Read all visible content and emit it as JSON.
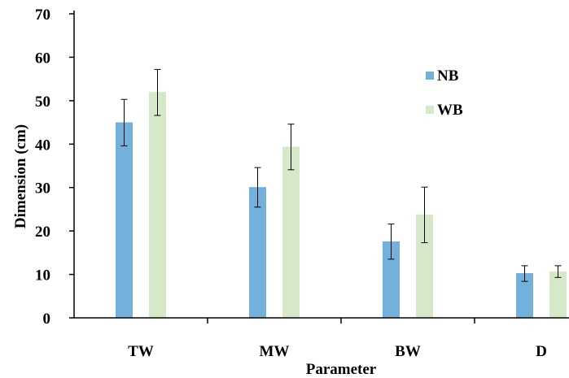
{
  "chart_data": {
    "type": "bar",
    "xlabel": "Parameter",
    "ylabel": "Dimension (cm)",
    "categories": [
      "TW",
      "MW",
      "BW",
      "D"
    ],
    "ylim": [
      0,
      70
    ],
    "yticks": [
      0,
      10,
      20,
      30,
      40,
      50,
      60,
      70
    ],
    "grid": false,
    "legend_position": "top-right",
    "series": [
      {
        "name": "NB",
        "color": "#74b0dc",
        "values": [
          45.0,
          30.1,
          17.6,
          10.3
        ],
        "error_low": [
          39.6,
          25.5,
          13.5,
          8.4
        ],
        "error_high": [
          50.3,
          34.6,
          21.6,
          12.0
        ]
      },
      {
        "name": "WB",
        "color": "#d5e9c9",
        "values": [
          52.0,
          39.4,
          23.8,
          10.7
        ],
        "error_low": [
          46.6,
          34.1,
          17.3,
          9.3
        ],
        "error_high": [
          57.2,
          44.6,
          30.1,
          12.0
        ]
      }
    ]
  }
}
